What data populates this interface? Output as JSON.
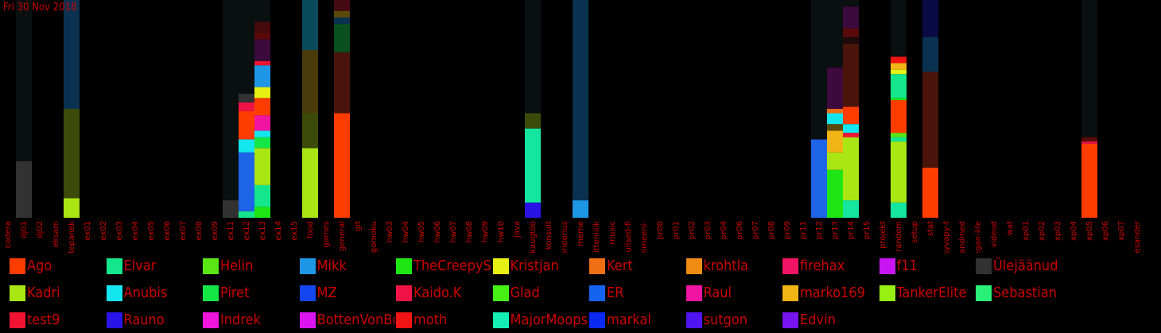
{
  "header": {
    "date": "Fri 30 Nov 2018"
  },
  "chart_data": {
    "type": "bar",
    "stacked": true,
    "categories": [
      "codera",
      "dj01",
      "dj02",
      "eksam",
      "ettepanek",
      "ex01",
      "ex02",
      "ex03",
      "ex04",
      "ex05",
      "ex06",
      "ex07",
      "ex08",
      "ex09",
      "ex11",
      "ex12",
      "ex13",
      "ex14",
      "ex15",
      "food",
      "games",
      "general",
      "git",
      "gomoku",
      "hw03",
      "hw04",
      "hw05",
      "hw06",
      "hw07",
      "hw08",
      "hw09",
      "hw10",
      "java",
      "kaugtöö",
      "konsult",
      "koridorius",
      "meme",
      "mitteniiiik",
      "music",
      "olulised-fi",
      "pelmeeni-",
      "pr00",
      "pr01",
      "pr02",
      "pr03",
      "pr04",
      "pr06",
      "pr07",
      "pr08",
      "pr09",
      "pr11",
      "pr12",
      "pr13",
      "pr14",
      "pr15",
      "projekt",
      "random",
      "setup",
      "stat",
      "syvapy-t",
      "teadaandmed",
      "vegan-life",
      "videod",
      "wat",
      "xp01",
      "xp02",
      "xp03",
      "xp04",
      "xp05",
      "xp06",
      "xp07",
      "õiesander"
    ],
    "ylim": [
      0,
      100
    ],
    "legend": [
      {
        "name": "Ago",
        "color": "#ff3c00"
      },
      {
        "name": "Elvar",
        "color": "#14e68c"
      },
      {
        "name": "Helin",
        "color": "#5ae614"
      },
      {
        "name": "Mikk",
        "color": "#1e96e6"
      },
      {
        "name": "TheCreepySh",
        "color": "#1ee614"
      },
      {
        "name": "Kristjan",
        "color": "#e6f014"
      },
      {
        "name": "Kert",
        "color": "#f06e14"
      },
      {
        "name": "krohtla",
        "color": "#f08c14"
      },
      {
        "name": "firehax",
        "color": "#f01464"
      },
      {
        "name": "f11",
        "color": "#c814f0"
      },
      {
        "name": "Ülejäänud",
        "color": "#323232"
      },
      {
        "name": "Kadri",
        "color": "#aae614"
      },
      {
        "name": "Anubis",
        "color": "#14e6f0"
      },
      {
        "name": "Piret",
        "color": "#14e646"
      },
      {
        "name": "MZ",
        "color": "#1446f0"
      },
      {
        "name": "Kaido.K",
        "color": "#f01446"
      },
      {
        "name": "Glad",
        "color": "#46f014"
      },
      {
        "name": "ER",
        "color": "#1464f0"
      },
      {
        "name": "Raul",
        "color": "#f014a0"
      },
      {
        "name": "marko169",
        "color": "#f0b414"
      },
      {
        "name": "TankerElite",
        "color": "#96f014"
      },
      {
        "name": "Sebastian",
        "color": "#28f078"
      },
      {
        "name": "test9",
        "color": "#f01432"
      },
      {
        "name": "Rauno",
        "color": "#2814e6"
      },
      {
        "name": "Indrek",
        "color": "#f014dc"
      },
      {
        "name": "BottenVonBot",
        "color": "#dc14f0"
      },
      {
        "name": "moth",
        "color": "#f01414"
      },
      {
        "name": "MajorMoopsy",
        "color": "#14f0b4"
      },
      {
        "name": "markal",
        "color": "#0a28f0"
      },
      {
        "name": "sutgon",
        "color": "#5014f0"
      },
      {
        "name": "Edvin",
        "color": "#7814f0"
      }
    ],
    "series_by_category": {
      "dj01": [
        {
          "value": 26,
          "color": "#323232"
        },
        {
          "value": 74,
          "color": "#0a0f0f"
        }
      ],
      "ettepanek": [
        {
          "value": 9,
          "color": "#aae614"
        },
        {
          "value": 41,
          "color": "#3c4a0a"
        },
        {
          "value": 50,
          "color": "#0a3250"
        }
      ],
      "ex11": [
        {
          "value": 8,
          "color": "#323232"
        },
        {
          "value": 92,
          "color": "#0a0f0f"
        }
      ],
      "ex12": [
        {
          "value": 3,
          "color": "#14e68c"
        },
        {
          "value": 27,
          "color": "#1e64e6"
        },
        {
          "value": 6,
          "color": "#14e6f0"
        },
        {
          "value": 13,
          "color": "#ff3c00"
        },
        {
          "value": 4,
          "color": "#f01446"
        },
        {
          "value": 4,
          "color": "#323232"
        },
        {
          "value": 43,
          "color": "#0a0f0f"
        }
      ],
      "ex13": [
        {
          "value": 5,
          "color": "#1ee614"
        },
        {
          "value": 10,
          "color": "#14e68c"
        },
        {
          "value": 17,
          "color": "#aae614"
        },
        {
          "value": 5,
          "color": "#14e646"
        },
        {
          "value": 3,
          "color": "#14e6f0"
        },
        {
          "value": 7,
          "color": "#f014a0"
        },
        {
          "value": 8,
          "color": "#ff3c00"
        },
        {
          "value": 5,
          "color": "#e6f014"
        },
        {
          "value": 10,
          "color": "#1e96e6"
        },
        {
          "value": 2,
          "color": "#f01432"
        },
        {
          "value": 10,
          "color": "#3c0a3c"
        },
        {
          "value": 3,
          "color": "#5a0a0a"
        },
        {
          "value": 5,
          "color": "#460a0a"
        },
        {
          "value": 10,
          "color": "#0a0f0f"
        }
      ],
      "food": [
        {
          "value": 32,
          "color": "#aae614"
        },
        {
          "value": 16,
          "color": "#3c4a0a"
        },
        {
          "value": 29,
          "color": "#4a3c0a"
        },
        {
          "value": 23,
          "color": "#0a4a5a"
        }
      ],
      "general": [
        {
          "value": 48,
          "color": "#ff3c00"
        },
        {
          "value": 28,
          "color": "#4a140a"
        },
        {
          "value": 13,
          "color": "#0a501e"
        },
        {
          "value": 3,
          "color": "#0a3250"
        },
        {
          "value": 3,
          "color": "#5a4a0a"
        },
        {
          "value": 5,
          "color": "#460a14"
        }
      ],
      "kaugtöö": [
        {
          "value": 7,
          "color": "#2814e6"
        },
        {
          "value": 34,
          "color": "#14e6a0"
        },
        {
          "value": 7,
          "color": "#3c4a0a"
        },
        {
          "value": 52,
          "color": "#0a0f0f"
        }
      ],
      "meme": [
        {
          "value": 8,
          "color": "#1e96e6"
        },
        {
          "value": 92,
          "color": "#0a3250"
        }
      ],
      "pr12": [
        {
          "value": 36,
          "color": "#1e64e6"
        },
        {
          "value": 64,
          "color": "#0a0f0f"
        }
      ],
      "pr13": [
        {
          "value": 22,
          "color": "#1ee614"
        },
        {
          "value": 8,
          "color": "#aae614"
        },
        {
          "value": 10,
          "color": "#f0b414"
        },
        {
          "value": 3,
          "color": "#5a4a0a"
        },
        {
          "value": 5,
          "color": "#14e6f0"
        },
        {
          "value": 2,
          "color": "#f06e14"
        },
        {
          "value": 19,
          "color": "#3c0a3c"
        },
        {
          "value": 31,
          "color": "#0a0f0f"
        }
      ],
      "pr14": [
        {
          "value": 8,
          "color": "#14e6a0"
        },
        {
          "value": 29,
          "color": "#aae614"
        },
        {
          "value": 2,
          "color": "#f01432"
        },
        {
          "value": 4,
          "color": "#14e6f0"
        },
        {
          "value": 8,
          "color": "#ff3c00"
        },
        {
          "value": 29,
          "color": "#4a140a"
        },
        {
          "value": 3,
          "color": "#1e0a0a"
        },
        {
          "value": 4,
          "color": "#5a0a0a"
        },
        {
          "value": 10,
          "color": "#3c0a3c"
        },
        {
          "value": 3,
          "color": "#0a0f0f"
        }
      ],
      "random": [
        {
          "value": 7,
          "color": "#14e6a0"
        },
        {
          "value": 28,
          "color": "#aae614"
        },
        {
          "value": 2,
          "color": "#14e68c"
        },
        {
          "value": 2,
          "color": "#5ae614"
        },
        {
          "value": 15,
          "color": "#ff3c00"
        },
        {
          "value": 1,
          "color": "#1ee614"
        },
        {
          "value": 11,
          "color": "#14e68c"
        },
        {
          "value": 2,
          "color": "#e6f014"
        },
        {
          "value": 3,
          "color": "#f0b414"
        },
        {
          "value": 3,
          "color": "#f01414"
        },
        {
          "value": 26,
          "color": "#0a0f0f"
        }
      ],
      "stat": [
        {
          "value": 23,
          "color": "#ff3c00"
        },
        {
          "value": 44,
          "color": "#4a140a"
        },
        {
          "value": 16,
          "color": "#0a3250"
        },
        {
          "value": 17,
          "color": "#0a0a46"
        }
      ],
      "xp05": [
        {
          "value": 34,
          "color": "#ff3c00"
        },
        {
          "value": 1,
          "color": "#f01446"
        },
        {
          "value": 2,
          "color": "#5a0a0a"
        },
        {
          "value": 63,
          "color": "#0a0f0f"
        }
      ]
    }
  }
}
